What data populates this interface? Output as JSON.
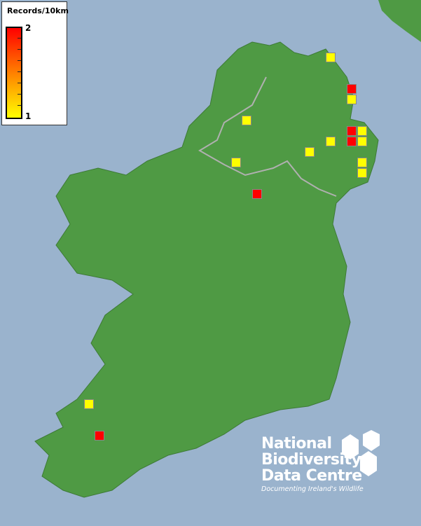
{
  "legend": {
    "title": "Records/10km",
    "max_label": "2",
    "min_label": "1",
    "color_max": "#ff0000",
    "color_min": "#ffff00"
  },
  "colors": {
    "sea": "#9ab3cd",
    "land": "#4f9a44",
    "border": "#b0b0b0"
  },
  "markers": [
    {
      "records": 1
    },
    {
      "records": 2
    },
    {
      "records": 1
    },
    {
      "records": 2
    },
    {
      "records": 1
    },
    {
      "records": 2
    },
    {
      "records": 1
    },
    {
      "records": 1
    },
    {
      "records": 1
    },
    {
      "records": 1
    },
    {
      "records": 1
    },
    {
      "records": 2
    },
    {
      "records": 1
    },
    {
      "records": 1
    },
    {
      "records": 1
    },
    {
      "records": 2
    }
  ],
  "logo": {
    "line1": "National",
    "line2": "Biodiversity",
    "line3": "Data Centre",
    "tagline": "Documenting Ireland's Wildlife"
  }
}
